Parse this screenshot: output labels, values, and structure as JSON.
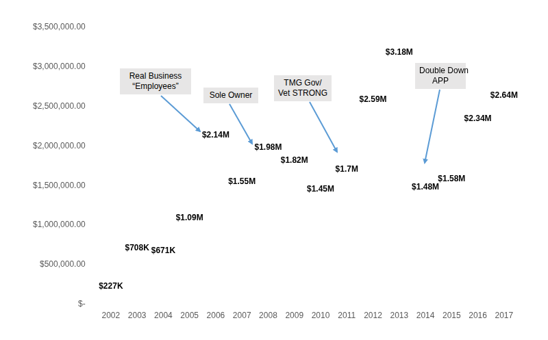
{
  "chart_data": {
    "type": "line",
    "categories": [
      "2002",
      "2003",
      "2004",
      "2005",
      "2006",
      "2007",
      "2008",
      "2009",
      "2010",
      "2011",
      "2012",
      "2013",
      "2014",
      "2015",
      "2016",
      "2017"
    ],
    "values": [
      227000,
      708000,
      671000,
      1090000,
      2140000,
      1550000,
      1980000,
      1820000,
      1450000,
      1700000,
      2590000,
      3180000,
      1480000,
      1580000,
      2340000,
      2640000
    ],
    "value_labels": [
      "$227K",
      "$708K",
      "$671K",
      "$1.09M",
      "$2.14M",
      "$1.55M",
      "$1.98M",
      "$1.82M",
      "$1.45M",
      "$1.7M",
      "$2.59M",
      "$3.18M",
      "$1.48M",
      "$1.58M",
      "$2.34M",
      "$2.64M"
    ],
    "ylim": [
      0,
      3500000
    ],
    "yticks": [
      {
        "value": 0,
        "label": "$-"
      },
      {
        "value": 500000,
        "label": "$500,000.00"
      },
      {
        "value": 1000000,
        "label": "$1,000,000.00"
      },
      {
        "value": 1500000,
        "label": "$1,500,000.00"
      },
      {
        "value": 2000000,
        "label": "$2,000,000.00"
      },
      {
        "value": 2500000,
        "label": "$2,500,000.00"
      },
      {
        "value": 3000000,
        "label": "$3,000,000.00"
      },
      {
        "value": 3500000,
        "label": "$3,500,000.00"
      }
    ],
    "grid": false,
    "data_labels": true,
    "marker": "none",
    "line_style": "none",
    "annotations": [
      [
        "Real Business",
        "“Employees”"
      ],
      [
        "Sole Owner"
      ],
      [
        "TMG Gov/",
        "Vet STRONG"
      ],
      [
        "Double Down",
        "APP"
      ]
    ]
  }
}
